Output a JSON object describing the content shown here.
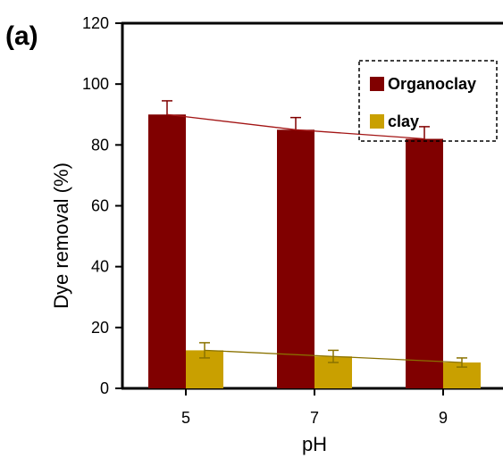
{
  "panel_label": "(a)",
  "chart_data": {
    "type": "bar",
    "title": "",
    "xlabel": "pH",
    "ylabel": "Dye removal (%)",
    "categories": [
      "5",
      "7",
      "9"
    ],
    "ylim": [
      0,
      120
    ],
    "yticks": [
      "0",
      "20",
      "40",
      "60",
      "80",
      "100",
      "120"
    ],
    "grid": false,
    "legend_position": "top-right",
    "series": [
      {
        "name": "Organoclay",
        "color": "#800000",
        "values": [
          90,
          85,
          82
        ],
        "errors": [
          4.5,
          4,
          4
        ]
      },
      {
        "name": "clay",
        "color": "#c9a000",
        "values": [
          12.5,
          10.5,
          8.5
        ],
        "errors": [
          2.5,
          2,
          1.5
        ]
      }
    ],
    "trend_lines": [
      {
        "series": "Organoclay",
        "color": "#a31515"
      },
      {
        "series": "clay",
        "color": "#8a7200"
      }
    ]
  }
}
